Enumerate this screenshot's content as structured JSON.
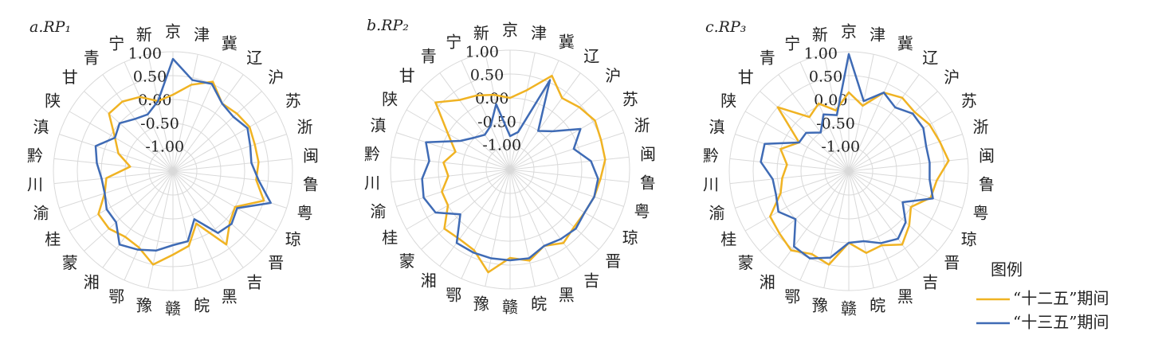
{
  "chart_data": [
    {
      "type": "radar",
      "title": "a.RP₁",
      "categories": [
        "京",
        "津",
        "冀",
        "辽",
        "沪",
        "苏",
        "浙",
        "闽",
        "鲁",
        "粤",
        "琼",
        "晋",
        "吉",
        "黑",
        "皖",
        "赣",
        "豫",
        "鄂",
        "湘",
        "蒙",
        "桂",
        "渝",
        "川",
        "黔",
        "滇",
        "陕",
        "甘",
        "青",
        "宁",
        "新"
      ],
      "ylim": [
        -1.5,
        1
      ],
      "yticks": [
        {
          "value": 1,
          "label": "1.00"
        },
        {
          "value": 0.5,
          "label": "0.50"
        },
        {
          "value": 0,
          "label": "0.00"
        },
        {
          "value": -0.5,
          "label": "-0.50"
        },
        {
          "value": -1,
          "label": "-1.00"
        }
      ],
      "grid": true,
      "series": [
        {
          "color": "#f0b323",
          "values": [
            0.1,
            0.35,
            0.55,
            0.25,
            0.3,
            0.35,
            0.3,
            0.3,
            0.25,
            0.5,
            0.0,
            0.1,
            0.4,
            -0.3,
            0.1,
            0.25,
            0.5,
            0.25,
            0.2,
            0.3,
            0.3,
            0.0,
            -0.1,
            -0.6,
            -0.3,
            -0.1,
            0.3,
            0.3,
            0.2,
            0.0
          ]
        },
        {
          "color": "#3f6bb5",
          "values": [
            0.85,
            0.45,
            0.5,
            0.25,
            0.2,
            0.3,
            0.2,
            0.15,
            0.3,
            0.65,
            0.05,
            0.15,
            0.1,
            -0.4,
            0.0,
            0.05,
            0.2,
            0.3,
            0.4,
            0.1,
            0.1,
            0.0,
            0.0,
            0.1,
            0.2,
            -0.1,
            0.0,
            -0.15,
            -0.2,
            0.0
          ]
        }
      ]
    },
    {
      "type": "radar",
      "title": "b.RP₂",
      "categories": [
        "京",
        "津",
        "冀",
        "辽",
        "沪",
        "苏",
        "浙",
        "闽",
        "鲁",
        "粤",
        "琼",
        "晋",
        "吉",
        "黑",
        "皖",
        "赣",
        "豫",
        "鄂",
        "湘",
        "蒙",
        "桂",
        "渝",
        "川",
        "黔",
        "滇",
        "陕",
        "甘",
        "青",
        "宁",
        "新"
      ],
      "ylim": [
        -1.5,
        1
      ],
      "yticks": [
        {
          "value": 1,
          "label": "1.00"
        },
        {
          "value": 0.5,
          "label": "0.50"
        },
        {
          "value": 0,
          "label": "0.00"
        },
        {
          "value": -0.5,
          "label": "-0.50"
        },
        {
          "value": -1,
          "label": "-1.00"
        }
      ],
      "grid": true,
      "series": [
        {
          "color": "#f0b323",
          "values": [
            0.0,
            0.2,
            0.65,
            0.35,
            0.45,
            0.55,
            0.5,
            0.5,
            0.4,
            0.35,
            0.3,
            0.3,
            0.4,
            0.25,
            0.45,
            0.35,
            0.7,
            0.35,
            0.3,
            0.35,
            0.0,
            0.0,
            -0.2,
            -0.1,
            -0.3,
            0.0,
            0.6,
            0.3,
            0.2,
            0.1
          ]
        },
        {
          "color": "#3f6bb5",
          "values": [
            -0.8,
            -0.7,
            0.55,
            -0.5,
            -0.3,
            0.2,
            -0.1,
            0.2,
            0.35,
            0.35,
            0.3,
            0.35,
            0.3,
            0.25,
            0.4,
            0.4,
            0.4,
            0.4,
            0.4,
            -0.1,
            0.3,
            0.4,
            0.35,
            0.2,
            0.35,
            -0.3,
            -0.5,
            -0.6,
            -0.5,
            -0.1
          ]
        }
      ]
    },
    {
      "type": "radar",
      "title": "c.RP₃",
      "categories": [
        "京",
        "津",
        "冀",
        "辽",
        "沪",
        "苏",
        "浙",
        "闽",
        "鲁",
        "粤",
        "琼",
        "晋",
        "吉",
        "黑",
        "皖",
        "赣",
        "豫",
        "鄂",
        "湘",
        "蒙",
        "桂",
        "渝",
        "川",
        "黔",
        "滇",
        "陕",
        "甘",
        "青",
        "宁",
        "新"
      ],
      "ylim": [
        -1.5,
        1
      ],
      "yticks": [
        {
          "value": 1,
          "label": "1.00"
        },
        {
          "value": 0.5,
          "label": "0.50"
        },
        {
          "value": 0,
          "label": "0.00"
        },
        {
          "value": -0.5,
          "label": "-0.50"
        },
        {
          "value": -1,
          "label": "-1.00"
        }
      ],
      "grid": true,
      "legend": true,
      "legend_title": "图例",
      "series": [
        {
          "name": "“十二五”期间",
          "color": "#f0b323",
          "values": [
            0.15,
            -0.1,
            0.3,
            0.4,
            0.35,
            0.45,
            0.5,
            0.6,
            0.35,
            0.3,
            0.0,
            0.2,
            0.4,
            0.2,
            0.25,
            0.0,
            0.5,
            0.4,
            0.55,
            0.45,
            0.4,
            0.0,
            -0.1,
            -0.2,
            0.0,
            -0.3,
            0.5,
            -0.1,
            0.05,
            -0.2
          ]
        },
        {
          "name": "“十三五”期间",
          "color": "#3f6bb5",
          "values": [
            0.95,
            0.0,
            0.3,
            0.15,
            0.3,
            0.3,
            0.2,
            0.2,
            0.2,
            0.35,
            -0.2,
            0.1,
            0.25,
            0.15,
            0.0,
            0.0,
            0.35,
            0.5,
            0.45,
            0.0,
            0.2,
            0.1,
            0.1,
            0.35,
            0.35,
            -0.3,
            -0.3,
            -0.5,
            -0.2,
            -0.3
          ]
        }
      ]
    }
  ]
}
